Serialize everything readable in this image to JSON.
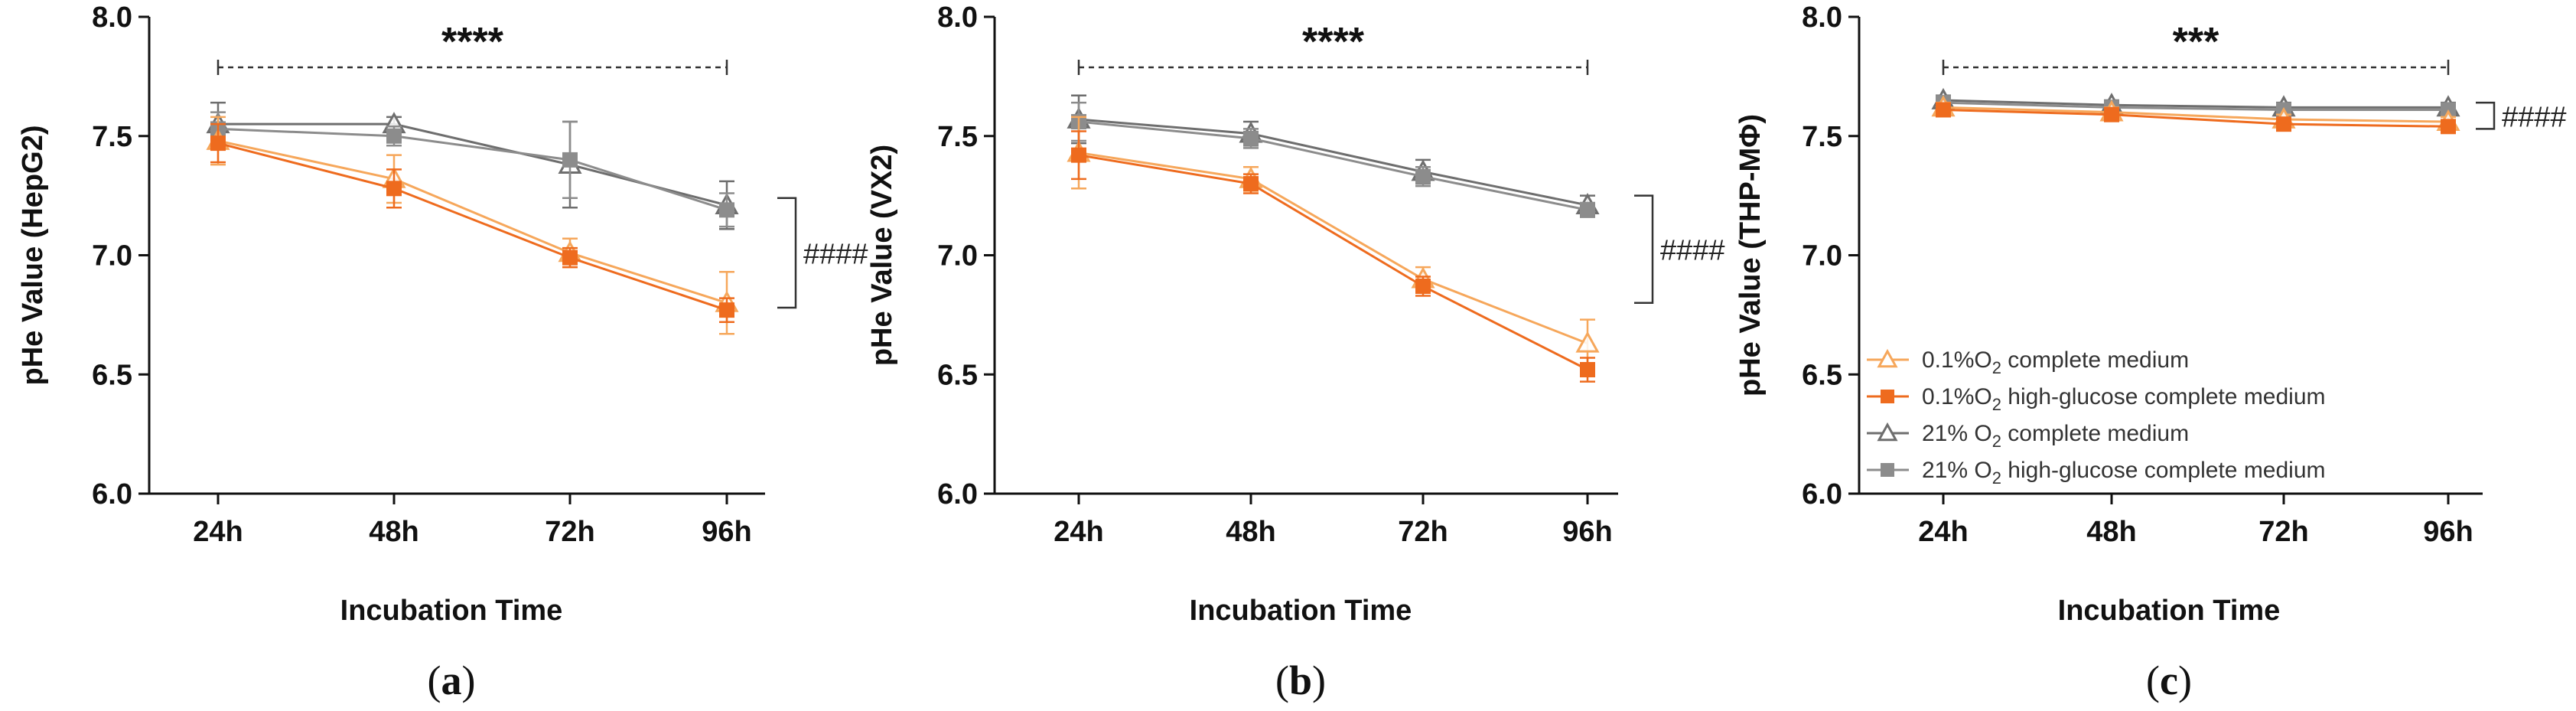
{
  "colors": {
    "light_orange": "#F6A75B",
    "dark_orange": "#EE6B1E",
    "dark_gray": "#6E6E6E",
    "mid_gray": "#8C8C8C",
    "axis": "#111111"
  },
  "legend": [
    {
      "text": "0.1%O",
      "sub": "2",
      "tail": " complete medium",
      "series": 0
    },
    {
      "text": "0.1%O",
      "sub": "2",
      "tail": " high-glucose complete medium",
      "series": 1
    },
    {
      "text": "21% O",
      "sub": "2",
      "tail": " complete medium",
      "series": 2
    },
    {
      "text": "21% O",
      "sub": "2",
      "tail": " high-glucose complete medium",
      "series": 3
    }
  ],
  "chart_data": [
    {
      "type": "line",
      "panel": "a",
      "panel_label": "a",
      "ylabel": "pHe Value (HepG2)",
      "xlabel": "Incubation Time",
      "categories": [
        "24h",
        "48h",
        "72h",
        "96h"
      ],
      "ylim": [
        6.0,
        8.0
      ],
      "yticks": [
        "6.0",
        "6.5",
        "7.0",
        "7.5",
        "8.0"
      ],
      "significance": "****",
      "bracket": "####",
      "bracket_range": [
        6.78,
        7.24
      ],
      "series": [
        {
          "name": "0.1%O2 complete medium",
          "marker": "triangle-open",
          "color": "#F6A75B",
          "values": [
            7.48,
            7.32,
            7.01,
            6.8
          ],
          "errors": [
            0.1,
            0.1,
            0.06,
            0.13
          ]
        },
        {
          "name": "0.1%O2 high-glucose complete medium",
          "marker": "square-filled",
          "color": "#EE6B1E",
          "values": [
            7.47,
            7.28,
            6.99,
            6.77
          ],
          "errors": [
            0.08,
            0.08,
            0.04,
            0.05
          ]
        },
        {
          "name": "21% O2 complete medium",
          "marker": "triangle-open",
          "color": "#6E6E6E",
          "values": [
            7.55,
            7.55,
            7.38,
            7.21
          ],
          "errors": [
            0.09,
            0.03,
            0.18,
            0.1
          ]
        },
        {
          "name": "21% O2 high-glucose complete medium",
          "marker": "square-filled",
          "color": "#8C8C8C",
          "values": [
            7.53,
            7.5,
            7.4,
            7.19
          ],
          "errors": [
            0.07,
            0.04,
            0.16,
            0.07
          ]
        }
      ]
    },
    {
      "type": "line",
      "panel": "b",
      "panel_label": "b",
      "ylabel": "pHe Value (VX2)",
      "xlabel": "Incubation Time",
      "categories": [
        "24h",
        "48h",
        "72h",
        "96h"
      ],
      "ylim": [
        6.0,
        8.0
      ],
      "yticks": [
        "6.0",
        "6.5",
        "7.0",
        "7.5",
        "8.0"
      ],
      "significance": "****",
      "bracket": "####",
      "bracket_range": [
        6.8,
        7.25
      ],
      "series": [
        {
          "name": "0.1%O2 complete medium",
          "marker": "triangle-open",
          "color": "#F6A75B",
          "values": [
            7.43,
            7.32,
            6.9,
            6.63
          ],
          "errors": [
            0.15,
            0.05,
            0.05,
            0.1
          ]
        },
        {
          "name": "0.1%O2 high-glucose complete medium",
          "marker": "square-filled",
          "color": "#EE6B1E",
          "values": [
            7.42,
            7.3,
            6.87,
            6.52
          ],
          "errors": [
            0.1,
            0.04,
            0.04,
            0.05
          ]
        },
        {
          "name": "21% O2 complete medium",
          "marker": "triangle-open",
          "color": "#6E6E6E",
          "values": [
            7.57,
            7.51,
            7.35,
            7.21
          ],
          "errors": [
            0.1,
            0.05,
            0.05,
            0.04
          ]
        },
        {
          "name": "21% O2 high-glucose complete medium",
          "marker": "square-filled",
          "color": "#8C8C8C",
          "values": [
            7.56,
            7.49,
            7.33,
            7.19
          ],
          "errors": [
            0.08,
            0.04,
            0.04,
            0.03
          ]
        }
      ]
    },
    {
      "type": "line",
      "panel": "c",
      "panel_label": "c",
      "ylabel": "pHe Value (THP-MΦ)",
      "xlabel": "Incubation Time",
      "categories": [
        "24h",
        "48h",
        "72h",
        "96h"
      ],
      "ylim": [
        6.0,
        8.0
      ],
      "yticks": [
        "6.0",
        "6.5",
        "7.0",
        "7.5",
        "8.0"
      ],
      "significance": "***",
      "bracket": "####",
      "bracket_range": [
        7.53,
        7.64
      ],
      "series": [
        {
          "name": "0.1%O2 complete medium",
          "marker": "triangle-open",
          "color": "#F6A75B",
          "values": [
            7.62,
            7.6,
            7.57,
            7.56
          ],
          "errors": [
            0.02,
            0.02,
            0.02,
            0.02
          ]
        },
        {
          "name": "0.1%O2 high-glucose complete medium",
          "marker": "square-filled",
          "color": "#EE6B1E",
          "values": [
            7.61,
            7.59,
            7.55,
            7.54
          ],
          "errors": [
            0.02,
            0.02,
            0.02,
            0.02
          ]
        },
        {
          "name": "21% O2 complete medium",
          "marker": "triangle-open",
          "color": "#6E6E6E",
          "values": [
            7.65,
            7.63,
            7.62,
            7.62
          ],
          "errors": [
            0.02,
            0.02,
            0.02,
            0.02
          ]
        },
        {
          "name": "21% O2 high-glucose complete medium",
          "marker": "square-filled",
          "color": "#8C8C8C",
          "values": [
            7.64,
            7.62,
            7.61,
            7.61
          ],
          "errors": [
            0.02,
            0.02,
            0.02,
            0.02
          ]
        }
      ]
    }
  ]
}
